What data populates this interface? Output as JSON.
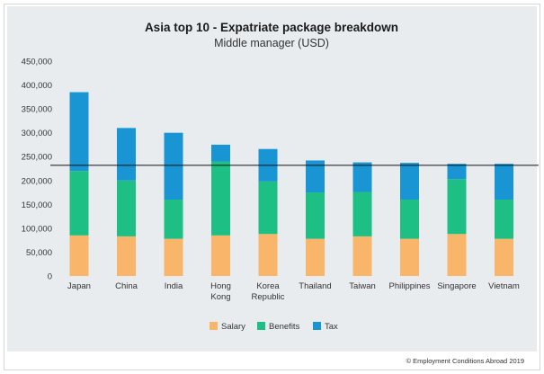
{
  "chart_data": {
    "type": "bar",
    "stacked": true,
    "title": "Asia top 10 - Expatriate package breakdown",
    "subtitle": "Middle manager (USD)",
    "categories": [
      [
        "Japan"
      ],
      [
        "China"
      ],
      [
        "India"
      ],
      [
        "Hong",
        "Kong"
      ],
      [
        "Korea",
        "Republic"
      ],
      [
        "Thailand"
      ],
      [
        "Taiwan"
      ],
      [
        "Philippines"
      ],
      [
        "Singapore"
      ],
      [
        "Vietnam"
      ]
    ],
    "series": [
      {
        "name": "Salary",
        "color": "#f9b66a",
        "values": [
          85000,
          83000,
          78000,
          85000,
          88000,
          78000,
          83000,
          78000,
          88000,
          78000
        ]
      },
      {
        "name": "Benefits",
        "color": "#1ebf85",
        "values": [
          135000,
          117000,
          82000,
          155000,
          110000,
          97000,
          93000,
          82000,
          115000,
          82000
        ]
      },
      {
        "name": "Tax",
        "color": "#1a95d4",
        "values": [
          165000,
          110000,
          140000,
          35000,
          68000,
          67000,
          62000,
          77000,
          32000,
          75000
        ]
      }
    ],
    "ylim": [
      0,
      450000
    ],
    "yticks": [
      "0",
      "50,000",
      "100,000",
      "150,000",
      "200,000",
      "250,000",
      "300,000",
      "350,000",
      "400,000",
      "450,000"
    ],
    "reference_line": 230000,
    "legend": [
      "Salary",
      "Benefits",
      "Tax"
    ],
    "legend_position": "bottom",
    "credit": "© Employment Conditions Abroad 2019"
  }
}
